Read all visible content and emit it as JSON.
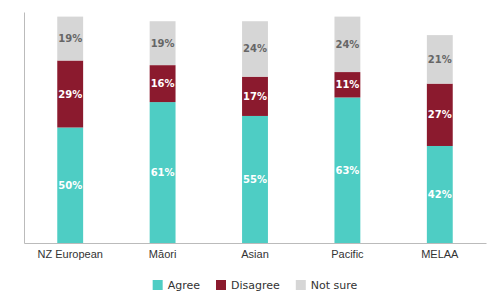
{
  "chart_data": {
    "type": "bar",
    "stacked": true,
    "categories": [
      "NZ European",
      "Māori",
      "Asian",
      "Pacific",
      "MELAA"
    ],
    "series": [
      {
        "name": "Agree",
        "color": "#4ecdc4",
        "values": [
          50,
          61,
          55,
          63,
          42
        ],
        "value_labels": [
          "50%",
          "61%",
          "55%",
          "63%",
          "42%"
        ]
      },
      {
        "name": "Disagree",
        "color": "#8b1a2e",
        "values": [
          29,
          16,
          17,
          11,
          27
        ],
        "value_labels": [
          "29%",
          "16%",
          "17%",
          "11%",
          "27%"
        ]
      },
      {
        "name": "Not sure",
        "color": "#d6d6d6",
        "values": [
          19,
          19,
          24,
          24,
          21
        ],
        "value_labels": [
          "19%",
          "19%",
          "24%",
          "24%",
          "21%"
        ]
      }
    ],
    "ylim": [
      0,
      100
    ],
    "yticks": [],
    "grid": false,
    "legend": "bottom",
    "data_labels": true,
    "tick_labels": "x"
  }
}
